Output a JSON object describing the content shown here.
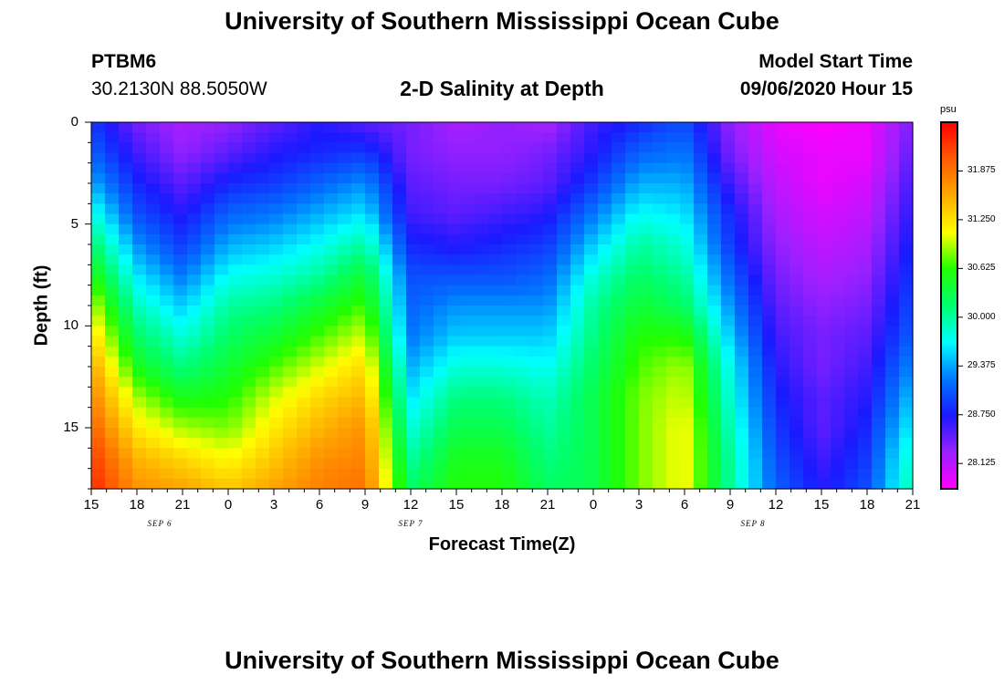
{
  "page": {
    "title_top": "University of Southern Mississippi Ocean Cube",
    "title_bottom": "University of Southern Mississippi Ocean Cube",
    "station": "PTBM6",
    "location": "30.2130N 88.5050W",
    "plot_title": "2-D Salinity at Depth",
    "model_start_label": "Model Start Time",
    "model_start_value": "09/06/2020 Hour 15"
  },
  "chart_data": {
    "type": "heatmap",
    "title": "2-D Salinity at Depth",
    "xlabel": "Forecast Time(Z)",
    "ylabel": "Depth (ft)",
    "x_ticks": [
      "15",
      "18",
      "21",
      "0",
      "3",
      "6",
      "9",
      "12",
      "15",
      "18",
      "21",
      "0",
      "3",
      "6",
      "9",
      "12",
      "15",
      "18",
      "21"
    ],
    "x_hours": [
      0,
      3,
      6,
      9,
      12,
      15,
      18,
      21,
      24,
      27,
      30,
      33,
      36,
      39,
      42,
      45,
      48,
      51,
      54
    ],
    "date_labels": [
      {
        "text": "SEP 6",
        "hour": 4.5
      },
      {
        "text": "SEP 7",
        "hour": 21
      },
      {
        "text": "SEP 8",
        "hour": 43.5
      }
    ],
    "y_ticks": [
      "0",
      "5",
      "10",
      "15"
    ],
    "y_values": [
      0,
      5,
      10,
      15
    ],
    "xlim": [
      0,
      54
    ],
    "ylim": [
      0,
      18
    ],
    "colorbar": {
      "unit": "psu",
      "min": 27.8,
      "max": 32.5,
      "ticks": [
        "31.875",
        "31.250",
        "30.625",
        "30.000",
        "29.375",
        "28.750",
        "28.125"
      ],
      "tick_values": [
        31.875,
        31.25,
        30.625,
        30.0,
        29.375,
        28.75,
        28.125
      ],
      "colors": [
        "#ff00ff",
        "#9a20ff",
        "#1a1aff",
        "#0078ff",
        "#00ffff",
        "#00ff70",
        "#20ff00",
        "#ffff00",
        "#ffaa00",
        "#ff5a00",
        "#ff0000"
      ]
    },
    "grid_desc": "Salinity (psu) sampled every 3 hours (columns at hours 0..54) and at depths 0,1.5,...,18 ft (rows).",
    "grid_hours": [
      0,
      3,
      6,
      9,
      12,
      15,
      18,
      21,
      24,
      27,
      30,
      33,
      36,
      39,
      42,
      45,
      48,
      51,
      54
    ],
    "grid_depths": [
      0,
      1.5,
      3,
      4.5,
      6,
      7.5,
      9,
      10.5,
      12,
      13.5,
      15,
      16.5,
      18
    ],
    "salinity": [
      [
        28.9,
        28.4,
        28.2,
        28.3,
        28.5,
        28.7,
        28.5,
        28.4,
        28.2,
        28.3,
        28.2,
        28.6,
        28.8,
        29.0,
        28.3,
        27.9,
        27.8,
        27.9,
        28.4
      ],
      [
        29.1,
        28.6,
        28.3,
        28.5,
        28.7,
        28.8,
        28.9,
        28.4,
        28.3,
        28.3,
        28.4,
        28.7,
        29.1,
        29.2,
        28.4,
        28.0,
        27.9,
        27.9,
        28.5
      ],
      [
        29.4,
        28.8,
        28.5,
        28.8,
        28.9,
        29.1,
        29.3,
        28.5,
        28.4,
        28.4,
        28.5,
        28.9,
        29.4,
        29.4,
        28.6,
        28.1,
        27.9,
        28.0,
        28.6
      ],
      [
        29.8,
        29.0,
        28.7,
        29.1,
        29.2,
        29.4,
        29.6,
        28.6,
        28.5,
        28.6,
        28.7,
        29.2,
        29.7,
        29.6,
        28.8,
        28.2,
        28.0,
        28.1,
        28.7
      ],
      [
        30.2,
        29.3,
        28.9,
        29.4,
        29.5,
        29.7,
        30.0,
        28.8,
        28.7,
        28.8,
        28.9,
        29.5,
        30.0,
        29.8,
        28.9,
        28.3,
        28.1,
        28.2,
        28.8
      ],
      [
        30.6,
        29.6,
        29.2,
        29.7,
        29.8,
        30.0,
        30.4,
        29.0,
        29.0,
        29.0,
        29.1,
        29.8,
        30.2,
        30.0,
        29.1,
        28.4,
        28.2,
        28.3,
        28.9
      ],
      [
        31.0,
        29.9,
        29.5,
        30.0,
        30.1,
        30.4,
        30.7,
        29.1,
        29.3,
        29.3,
        29.3,
        30.0,
        30.4,
        30.2,
        29.3,
        28.5,
        28.3,
        28.4,
        29.0
      ],
      [
        31.3,
        30.2,
        29.8,
        30.2,
        30.4,
        30.7,
        31.0,
        29.2,
        29.5,
        29.5,
        29.5,
        30.1,
        30.6,
        30.6,
        29.5,
        28.6,
        28.4,
        28.5,
        29.1
      ],
      [
        31.6,
        30.5,
        30.1,
        30.4,
        30.7,
        31.0,
        31.3,
        29.4,
        29.8,
        29.8,
        29.7,
        30.2,
        30.7,
        30.9,
        29.7,
        28.7,
        28.4,
        28.6,
        29.3
      ],
      [
        31.8,
        30.9,
        30.5,
        30.6,
        31.0,
        31.3,
        31.5,
        29.6,
        30.1,
        30.1,
        29.9,
        30.3,
        30.8,
        31.0,
        29.8,
        28.8,
        28.5,
        28.7,
        29.5
      ],
      [
        32.0,
        31.2,
        30.9,
        30.8,
        31.2,
        31.5,
        31.7,
        29.8,
        30.3,
        30.3,
        30.0,
        30.3,
        30.8,
        31.1,
        29.9,
        28.9,
        28.5,
        28.8,
        29.7
      ],
      [
        32.2,
        31.5,
        31.3,
        31.1,
        31.4,
        31.7,
        31.8,
        30.0,
        30.5,
        30.5,
        30.1,
        30.3,
        30.8,
        31.1,
        30.0,
        29.0,
        28.6,
        28.9,
        29.9
      ],
      [
        32.3,
        31.7,
        31.6,
        31.4,
        31.6,
        31.8,
        31.9,
        30.2,
        30.6,
        30.6,
        30.2,
        30.3,
        30.8,
        31.1,
        30.0,
        29.1,
        28.7,
        29.0,
        30.0
      ]
    ]
  }
}
